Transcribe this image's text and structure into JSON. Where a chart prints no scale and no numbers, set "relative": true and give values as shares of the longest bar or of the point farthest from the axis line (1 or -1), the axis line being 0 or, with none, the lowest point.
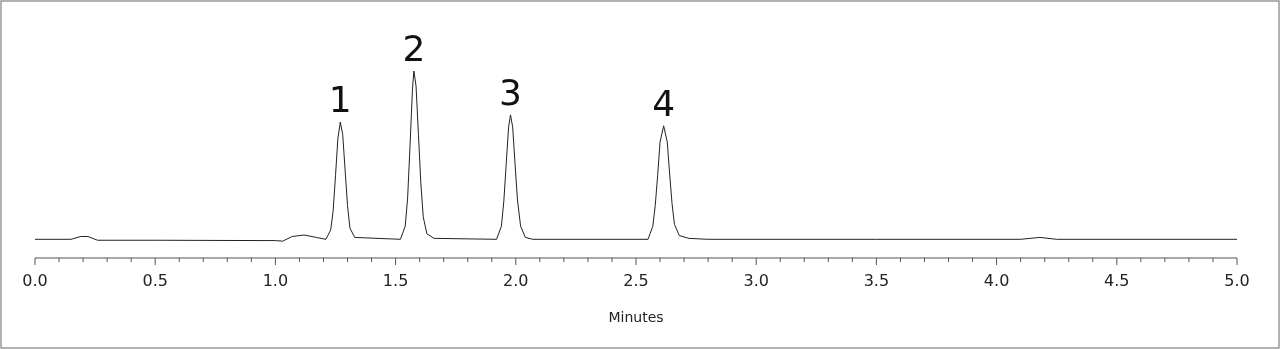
{
  "chart_data": {
    "type": "line",
    "xlabel": "Minutes",
    "relative": true,
    "grid": false,
    "marker": "none",
    "line_style": "solid",
    "xlim": [
      0,
      5
    ],
    "xticks": [
      {
        "value": 0,
        "label": "0.0"
      },
      {
        "value": 0.1,
        "label": null
      },
      {
        "value": 0.2,
        "label": null
      },
      {
        "value": 0.3,
        "label": null
      },
      {
        "value": 0.4,
        "label": null
      },
      {
        "value": 0.5,
        "label": "0.5"
      },
      {
        "value": 0.6,
        "label": null
      },
      {
        "value": 0.7,
        "label": null
      },
      {
        "value": 0.8,
        "label": null
      },
      {
        "value": 0.9,
        "label": null
      },
      {
        "value": 1,
        "label": "1.0"
      },
      {
        "value": 1.1,
        "label": null
      },
      {
        "value": 1.2,
        "label": null
      },
      {
        "value": 1.3,
        "label": null
      },
      {
        "value": 1.4,
        "label": null
      },
      {
        "value": 1.5,
        "label": "1.5"
      },
      {
        "value": 1.6,
        "label": null
      },
      {
        "value": 1.7,
        "label": null
      },
      {
        "value": 1.8,
        "label": null
      },
      {
        "value": 1.9,
        "label": null
      },
      {
        "value": 2,
        "label": "2.0"
      },
      {
        "value": 2.1,
        "label": null
      },
      {
        "value": 2.2,
        "label": null
      },
      {
        "value": 2.3,
        "label": null
      },
      {
        "value": 2.4,
        "label": null
      },
      {
        "value": 2.5,
        "label": "2.5"
      },
      {
        "value": 2.6,
        "label": null
      },
      {
        "value": 2.7,
        "label": null
      },
      {
        "value": 2.8,
        "label": null
      },
      {
        "value": 2.9,
        "label": null
      },
      {
        "value": 3,
        "label": "3.0"
      },
      {
        "value": 3.1,
        "label": null
      },
      {
        "value": 3.2,
        "label": null
      },
      {
        "value": 3.3,
        "label": null
      },
      {
        "value": 3.4,
        "label": null
      },
      {
        "value": 3.5,
        "label": "3.5"
      },
      {
        "value": 3.6,
        "label": null
      },
      {
        "value": 3.7,
        "label": null
      },
      {
        "value": 3.8,
        "label": null
      },
      {
        "value": 3.9,
        "label": null
      },
      {
        "value": 4,
        "label": "4.0"
      },
      {
        "value": 4.1,
        "label": null
      },
      {
        "value": 4.2,
        "label": null
      },
      {
        "value": 4.3,
        "label": null
      },
      {
        "value": 4.4,
        "label": null
      },
      {
        "value": 4.5,
        "label": "4.5"
      },
      {
        "value": 4.6,
        "label": null
      },
      {
        "value": 4.7,
        "label": null
      },
      {
        "value": 4.8,
        "label": null
      },
      {
        "value": 4.9,
        "label": null
      },
      {
        "value": 5,
        "label": "5.0"
      }
    ],
    "annotations": [
      {
        "text": "1",
        "x": 1.27,
        "y": 0.727
      },
      {
        "text": "2",
        "x": 1.576,
        "y": 1
      },
      {
        "text": "3",
        "x": 1.978,
        "y": 0.765
      },
      {
        "text": "4",
        "x": 2.615,
        "y": 0.707
      }
    ],
    "series": [
      {
        "color": "#222222",
        "x": [
          0,
          0.15,
          0.19,
          0.22,
          0.26,
          0.5,
          1.0,
          1.03,
          1.07,
          1.12,
          1.17,
          1.21,
          1.23,
          1.24,
          1.25,
          1.26,
          1.27,
          1.28,
          1.29,
          1.3,
          1.31,
          1.33,
          1.52,
          1.54,
          1.55,
          1.56,
          1.57,
          1.576,
          1.585,
          1.595,
          1.605,
          1.615,
          1.63,
          1.66,
          1.92,
          1.94,
          1.95,
          1.96,
          1.97,
          1.978,
          1.987,
          1.997,
          2.007,
          2.02,
          2.04,
          2.07,
          2.55,
          2.57,
          2.58,
          2.59,
          2.6,
          2.615,
          2.63,
          2.64,
          2.65,
          2.66,
          2.68,
          2.72,
          2.8,
          3.5,
          4.1,
          4.18,
          4.25,
          5.0
        ],
        "values": [
          0.1,
          0.1,
          0.115,
          0.115,
          0.095,
          0.095,
          0.093,
          0.09,
          0.115,
          0.123,
          0.11,
          0.1,
          0.15,
          0.25,
          0.44,
          0.64,
          0.727,
          0.66,
          0.47,
          0.28,
          0.16,
          0.11,
          0.1,
          0.17,
          0.32,
          0.6,
          0.9,
          1.0,
          0.92,
          0.66,
          0.4,
          0.22,
          0.13,
          0.105,
          0.1,
          0.17,
          0.3,
          0.5,
          0.7,
          0.765,
          0.7,
          0.5,
          0.31,
          0.17,
          0.11,
          0.1,
          0.1,
          0.17,
          0.28,
          0.44,
          0.62,
          0.707,
          0.62,
          0.45,
          0.29,
          0.18,
          0.12,
          0.105,
          0.1,
          0.1,
          0.1,
          0.11,
          0.1,
          0.1
        ]
      }
    ]
  }
}
